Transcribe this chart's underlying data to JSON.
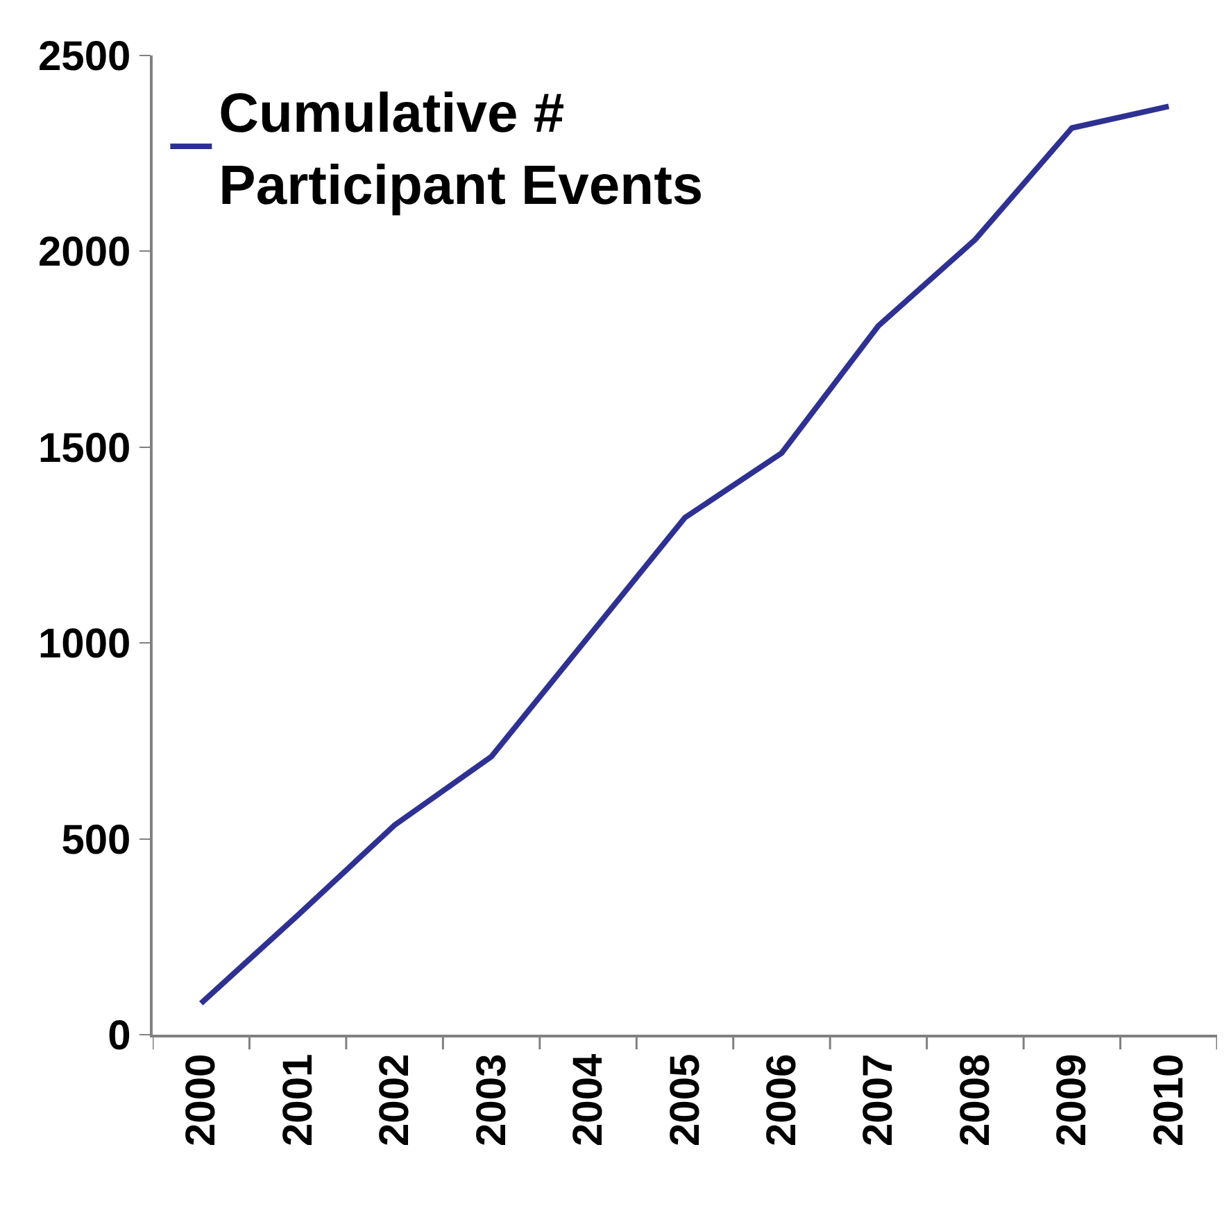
{
  "chart_data": {
    "type": "line",
    "categories": [
      "2000",
      "2001",
      "2002",
      "2003",
      "2004",
      "2005",
      "2006",
      "2007",
      "2008",
      "2009",
      "2010"
    ],
    "series": [
      {
        "name": "Cumulative # Participant Events",
        "color": "#2e3192",
        "values": [
          80,
          305,
          535,
          710,
          1015,
          1320,
          1485,
          1810,
          2030,
          2315,
          2370
        ]
      }
    ],
    "ylim": [
      0,
      2500
    ],
    "yticks": [
      0,
      500,
      1000,
      1500,
      2000,
      2500
    ],
    "legend": "top left",
    "marker": "none",
    "line_style": "solid"
  }
}
